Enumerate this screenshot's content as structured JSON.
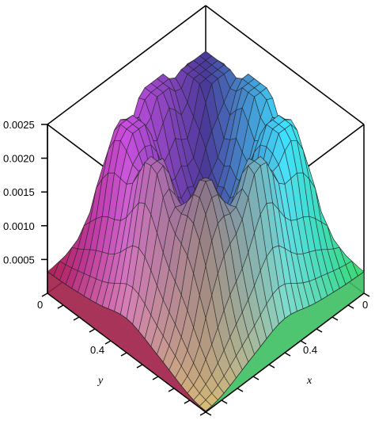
{
  "chart_data": {
    "type": "surface",
    "title": "",
    "xlabel": "x",
    "ylabel": "y",
    "zlabel": "",
    "xlim": [
      0,
      1
    ],
    "ylim": [
      0,
      1
    ],
    "zlim": [
      0,
      0.0025
    ],
    "x_ticks": [
      "0",
      "0.4"
    ],
    "y_ticks": [
      "0",
      "0.4"
    ],
    "z_ticks": [
      "0.0025",
      "0.0020",
      "0.0015",
      "0.0010",
      "0.0005"
    ],
    "surface": {
      "peak_value": 0.0025,
      "edge_value": 0.0009,
      "center_value": 0.0003,
      "front_corner_value": 0.0,
      "back_corner_value": 0.0019,
      "colors": [
        "#b02050",
        "#c84ee0",
        "#4a3a9a",
        "#3fe0ff",
        "#3fd86a",
        "#f0d070",
        "#9a6a40"
      ]
    }
  }
}
